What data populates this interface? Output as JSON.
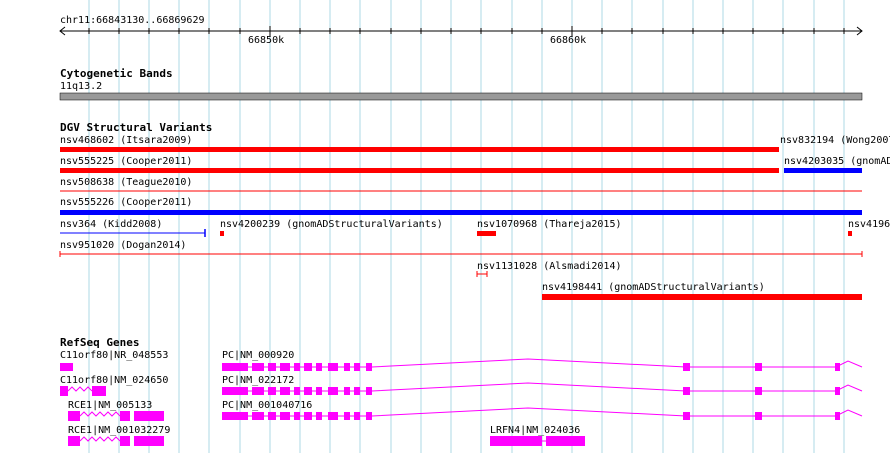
{
  "ruler": {
    "location": "chr11:66843130..66869629",
    "ticks": [
      "66850k",
      "66860k"
    ]
  },
  "cytoband": {
    "title": "Cytogenetic Bands",
    "band": "11q13.2"
  },
  "dgv": {
    "title": "DGV Structural Variants",
    "features": [
      {
        "label": "nsv468602 (Itsara2009)",
        "color": "#ff0000"
      },
      {
        "label": "nsv832194 (Wong2007)",
        "color": "#ff0000"
      },
      {
        "label": "nsv555225 (Cooper2011)",
        "color": "#ff0000"
      },
      {
        "label": "nsv4203035 (gnomAD",
        "color": "#0000ff"
      },
      {
        "label": "nsv508638 (Teague2010)",
        "color": "#ff0000"
      },
      {
        "label": "nsv555226 (Cooper2011)",
        "color": "#0000ff"
      },
      {
        "label": "nsv364 (Kidd2008)",
        "color": "#0000ff"
      },
      {
        "label": "nsv4200239 (gnomADStructuralVariants)",
        "color": "#ff0000"
      },
      {
        "label": "nsv1070968 (Thareja2015)",
        "color": "#ff0000"
      },
      {
        "label": "nsv4196",
        "color": "#ff0000"
      },
      {
        "label": "nsv951020 (Dogan2014)",
        "color": "#ff0000"
      },
      {
        "label": "nsv1131028 (Alsmadi2014)",
        "color": "#ff0000"
      },
      {
        "label": "nsv4198441 (gnomADStructuralVariants)",
        "color": "#ff0000"
      }
    ]
  },
  "refseq": {
    "title": "RefSeq Genes",
    "genes": [
      "C11orf80|NR_048553",
      "PC|NM_000920",
      "C11orf80|NM_024650",
      "PC|NM_022172",
      "RCE1|NM_005133",
      "PC|NM_001040716",
      "RCE1|NM_001032279",
      "LRFN4|NM_024036"
    ],
    "color": "#ff00ff"
  }
}
